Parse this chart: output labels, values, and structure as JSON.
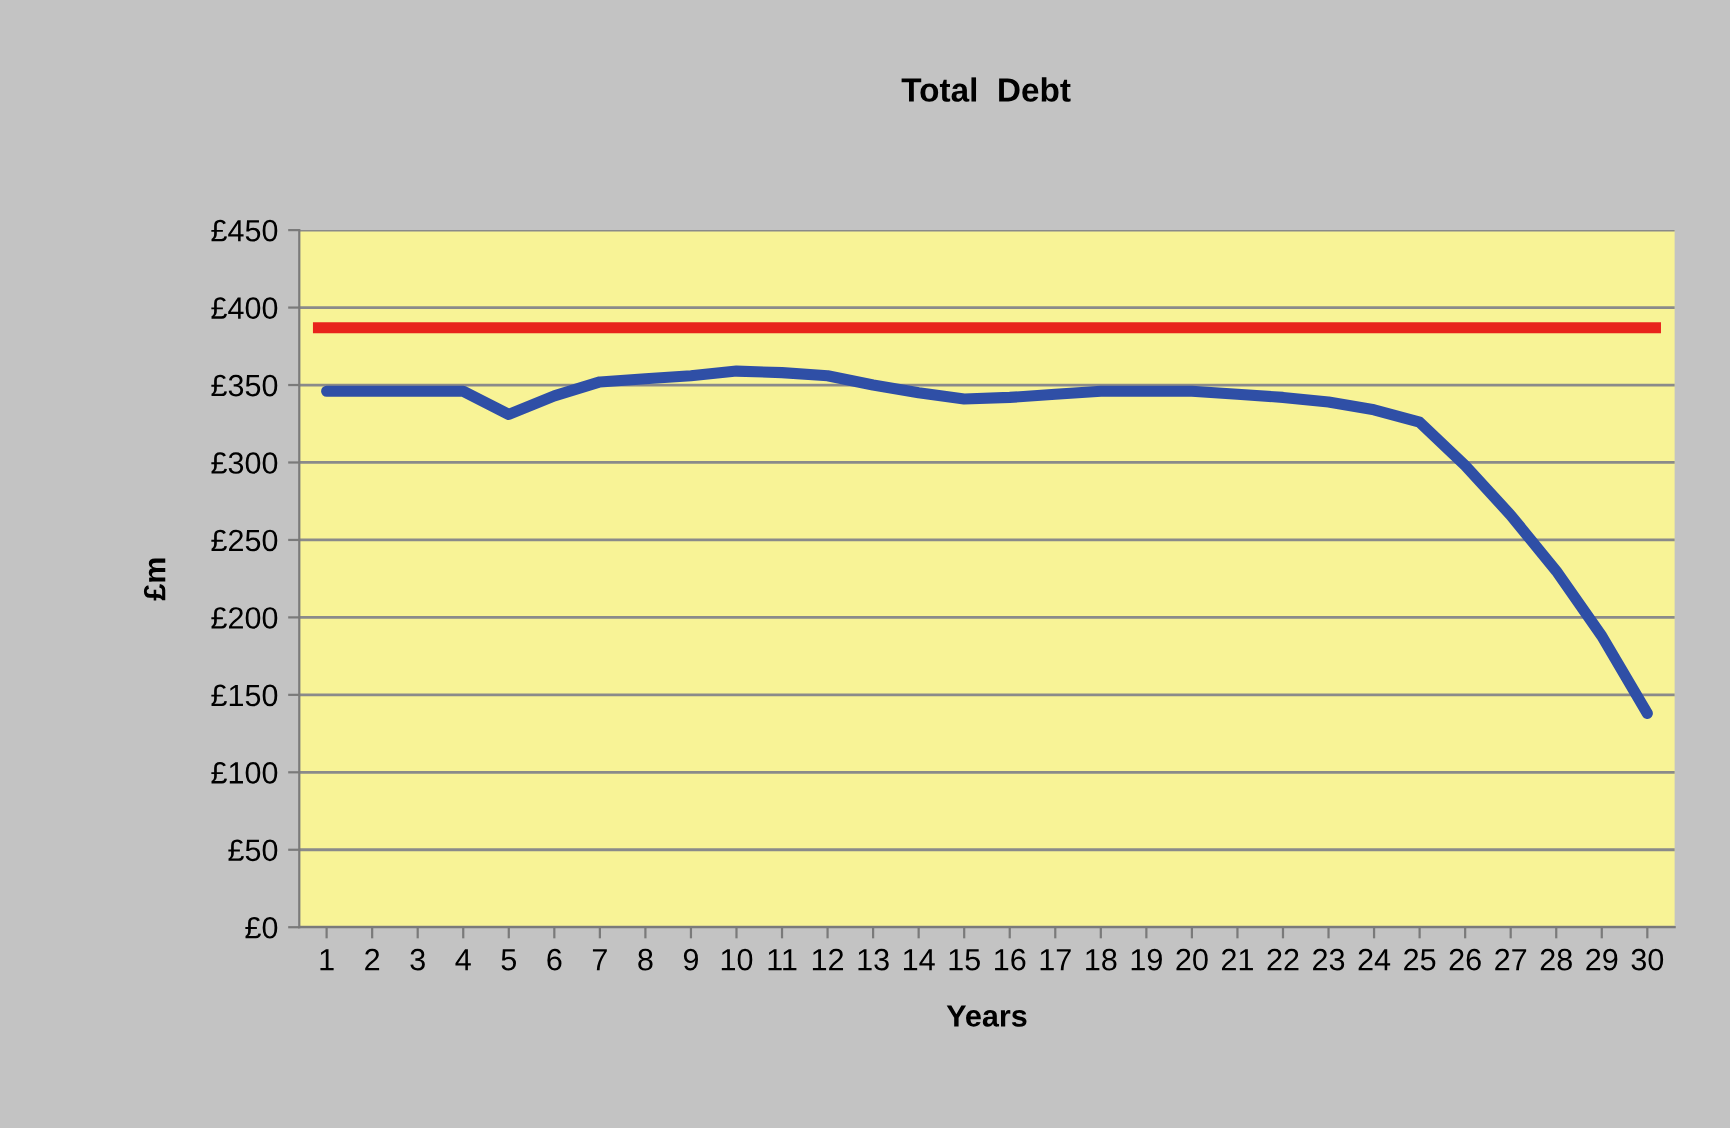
{
  "chart_data": {
    "type": "line",
    "title": "Total  Debt",
    "xlabel": "Years",
    "ylabel": "£m",
    "categories": [
      "1",
      "2",
      "3",
      "4",
      "5",
      "6",
      "7",
      "8",
      "9",
      "10",
      "11",
      "12",
      "13",
      "14",
      "15",
      "16",
      "17",
      "18",
      "19",
      "20",
      "21",
      "22",
      "23",
      "24",
      "25",
      "26",
      "27",
      "28",
      "29",
      "30"
    ],
    "series": [
      {
        "color": "#2f4fa6",
        "values": [
          346,
          346,
          346,
          346,
          331,
          343,
          352,
          354,
          356,
          359,
          358,
          356,
          350,
          345,
          341,
          342,
          344,
          346,
          346,
          346,
          344,
          342,
          339,
          334,
          326,
          298,
          266,
          230,
          188,
          138
        ]
      }
    ],
    "ref_lines": [
      {
        "axis": "y",
        "value": 387,
        "color": "#e8231c"
      }
    ],
    "ylim": [
      0,
      450
    ],
    "yticks": [
      {
        "value": 0,
        "label": "£0"
      },
      {
        "value": 50,
        "label": "£50"
      },
      {
        "value": 100,
        "label": "£100"
      },
      {
        "value": 150,
        "label": "£150"
      },
      {
        "value": 200,
        "label": "£200"
      },
      {
        "value": 250,
        "label": "£250"
      },
      {
        "value": 300,
        "label": "£300"
      },
      {
        "value": 350,
        "label": "£350"
      },
      {
        "value": 400,
        "label": "£400"
      },
      {
        "value": 450,
        "label": "£450"
      }
    ],
    "grid": "y",
    "marker": "none",
    "line_style": "solid",
    "legend": false
  }
}
